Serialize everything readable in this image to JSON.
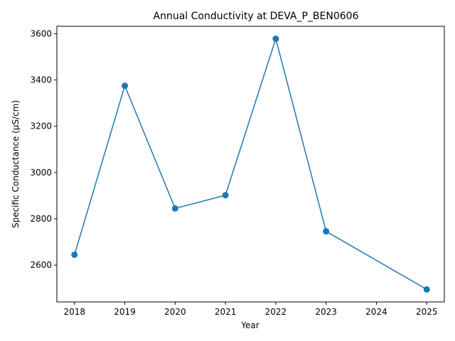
{
  "chart_data": {
    "type": "line",
    "title": "Annual Conductivity at DEVA_P_BEN0606",
    "xlabel": "Year",
    "ylabel": "Specific Conductance (µS/cm)",
    "x": [
      2018,
      2019,
      2020,
      2021,
      2022,
      2023,
      2025
    ],
    "series": [
      {
        "values": [
          2645,
          3375,
          2845,
          2902,
          3578,
          2746,
          2495
        ]
      }
    ],
    "xticks": [
      2018,
      2019,
      2020,
      2021,
      2022,
      2023,
      2024,
      2025
    ],
    "yticks": [
      2600,
      2800,
      3000,
      3200,
      3400,
      3600
    ],
    "xlim": [
      2017.65,
      2025.35
    ],
    "ylim": [
      2441,
      3632
    ],
    "grid": false,
    "markers": "circle",
    "colors": {
      "series": "#1f77b4"
    }
  }
}
